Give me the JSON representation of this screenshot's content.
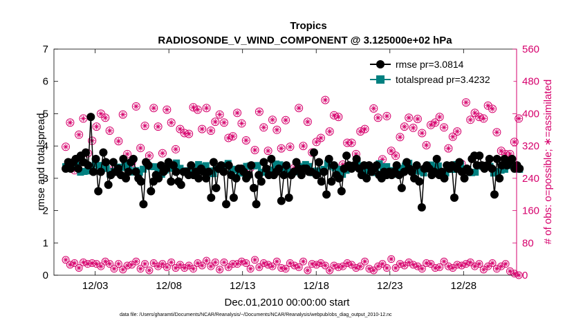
{
  "chart_data": {
    "type": "line",
    "title": "Tropics",
    "subtitle": "RADIOSONDE_V_WIND_COMPONENT @ 3.125000e+02 hPa",
    "xlabel": "Dec.01,2010 00:00:00 start",
    "ylabel_left": "rmse and totalspread",
    "ylabel_right": "# of obs: o=possible; ∗=assimilated",
    "xlim": [
      0.2,
      31.6
    ],
    "ylim_left": [
      0,
      7
    ],
    "ylim_right": [
      0,
      560
    ],
    "x_ticks": [
      3,
      8,
      13,
      18,
      23,
      28
    ],
    "x_tick_labels": [
      "12/03",
      "12/08",
      "12/13",
      "12/18",
      "12/23",
      "12/28"
    ],
    "y_ticks_left": [
      "0",
      "1",
      "2",
      "3",
      "4",
      "5",
      "6",
      "7"
    ],
    "y_ticks_right": [
      "0",
      "80",
      "160",
      "240",
      "320",
      "400",
      "480",
      "560"
    ],
    "legend": [
      "rmse pr=3.0814",
      "totalspread pr=3.4232"
    ],
    "footer": "data file: /Users/gharamti/Documents/NCAR/Reanalysis/~/Documents/NCAR/Reanalysis/webpub/obs_diag_output_2010-12.nc",
    "colors": {
      "rmse": "#000000",
      "totalspread": "#008080",
      "obs": "#d6006c"
    },
    "series": [
      {
        "name": "rmse",
        "values": [
          3.3,
          3.1,
          3.5,
          3.1,
          3.3,
          3.1,
          3.5,
          3.2,
          3.6,
          3.1,
          3.3,
          3.1,
          3.7,
          3.2,
          3.5,
          3.1,
          3.8,
          3.3,
          3.4,
          3.7,
          4.9,
          3.4,
          3.2,
          3.9,
          3.6,
          3.0,
          2.6,
          3.4,
          3.2,
          2.4,
          3.8,
          2.0,
          3.5,
          3.0,
          2.8,
          3.3,
          3.1,
          3.0,
          3.5,
          3.8,
          3.2,
          3.7,
          3.3,
          3.4,
          3.1,
          3.2,
          3.6,
          3.3,
          3.0,
          3.4,
          3.2,
          2.9,
          3.5,
          3.1,
          3.6,
          3.3,
          3.2,
          3.8,
          3.0,
          3.9,
          2.9,
          3.6,
          2.2,
          3.2,
          3.5,
          3.0,
          3.4,
          3.2,
          2.6,
          3.3,
          2.9,
          3.6,
          3.1,
          3.4,
          3.0,
          2.2,
          3.4,
          3.6,
          3.2,
          2.8,
          3.3,
          3.0,
          3.5,
          3.7,
          2.9,
          3.1,
          3.4,
          2.5,
          3.2,
          3.6,
          2.9,
          3.2,
          2.8,
          3.3,
          3.2,
          3.4,
          3.2,
          2.8,
          3.1,
          3.6,
          3.4,
          3.2,
          3.1,
          3.4,
          3.2,
          3.6,
          3.0,
          3.0,
          3.3,
          2.7,
          3.2,
          2.3,
          3.0,
          1.8,
          3.2,
          3.3,
          2.4,
          3.1,
          3.5,
          3.0,
          2.7,
          3.1,
          3.3,
          2.5,
          3.4,
          3.0,
          3.2,
          2.8,
          2.2,
          3.3,
          3.4,
          2.5,
          3.1,
          3.2,
          2.4,
          3.3,
          3.0,
          3.4,
          3.3,
          3.5,
          3.3,
          3.1,
          3.2,
          2.1,
          3.0,
          3.4,
          3.1,
          2.7,
          3.4,
          3.3,
          2.7,
          3.2,
          2.2,
          3.3,
          3.1,
          3.4,
          2.9,
          3.6,
          3.5,
          3.1,
          3.3,
          3.7,
          3.1,
          2.6,
          3.6,
          3.4,
          3.1,
          3.0,
          3.2,
          2.8,
          3.3,
          3.0,
          2.3,
          3.6,
          3.1,
          2.1,
          3.4,
          3.3,
          2.4,
          3.0,
          3.1,
          3.4,
          3.2,
          2.6,
          3.5,
          4.0,
          3.3,
          2.8,
          3.1,
          2.7,
          3.3,
          3.2,
          3.3,
          2.9,
          3.2,
          3.5,
          3.2,
          3.4,
          3.8,
          3.3,
          3.1,
          3.6,
          3.5,
          3.3,
          2.9,
          3.4,
          3.2,
          3.0,
          2.5,
          3.2,
          3.6,
          3.3,
          2.9,
          3.3,
          3.4,
          3.2,
          3.1,
          3.2,
          3.0,
          3.2,
          2.6,
          3.4,
          3.3,
          3.4,
          3.7,
          3.3,
          3.4,
          3.1,
          3.3,
          3.2,
          3.4,
          3.4,
          3.6,
          3.1,
          3.3,
          3.8,
          3.1,
          2.6,
          3.4,
          3.2,
          3.0,
          3.3,
          3.4,
          3.1,
          3.2,
          3.5,
          3.3,
          2.4,
          3.4,
          3.2,
          3.1,
          3.3,
          3.0,
          3.5,
          3.2,
          3.3,
          3.1,
          3.2,
          3.2,
          3.3,
          3.1,
          3.0,
          3.2,
          2.6,
          3.4,
          2.9,
          3.1,
          3.3,
          2.7,
          3.5,
          3.2,
          3.3,
          3.5,
          2.9,
          3.3,
          3.4,
          3.2,
          3.6,
          3.0,
          3.3,
          3.4,
          3.7,
          2.9,
          3.1,
          2.1,
          3.5,
          3.3,
          3.0,
          3.4,
          2.8,
          3.3,
          3.6,
          3.1,
          3.4,
          3.2,
          3.5,
          3.6,
          3.3,
          3.1,
          3.4,
          3.2,
          3.3,
          3.0,
          3.4,
          3.4,
          3.6,
          3.3,
          2.1,
          3.4,
          3.2,
          2.4,
          3.0,
          3.3,
          3.1,
          3.5,
          3.4,
          3.2,
          3.3,
          3.0,
          3.4,
          3.3,
          3.5,
          3.2,
          3.0,
          3.6,
          3.2,
          3.7,
          3.8,
          3.4,
          3.0,
          3.7,
          3.2,
          3.4,
          3.1,
          3.3,
          2.2,
          3.4,
          2.2,
          3.6,
          3.0,
          3.3,
          3.4,
          2.5,
          3.2,
          3.6,
          3.9,
          3.0,
          2.6,
          3.4,
          4.1,
          3.6,
          3.1,
          3.4,
          3.2,
          3.5,
          3.3,
          3.6,
          3.5,
          3.3,
          3.2,
          3.4,
          3.2,
          3.3
        ]
      }
    ]
  }
}
